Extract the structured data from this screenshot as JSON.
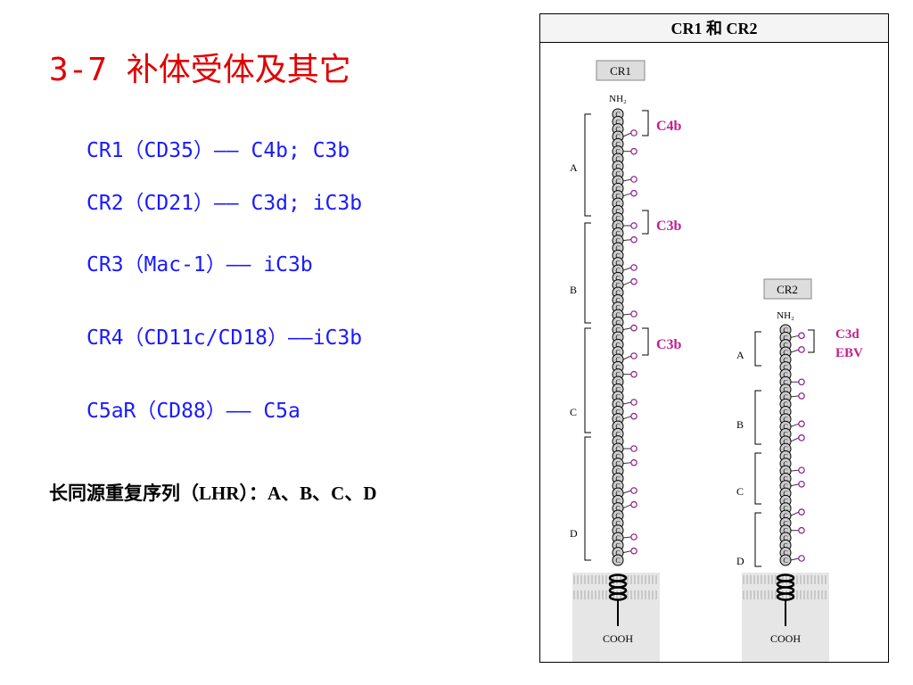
{
  "title": "3-7  补体受体及其它",
  "receptors": [
    "CR1（CD35）—— C4b; C3b",
    "CR2（CD21）—— C3d; iC3b",
    "CR3（Mac-1）—— iC3b",
    "CR4（CD11c/CD18）——iC3b",
    "C5aR（CD88）—— C5a"
  ],
  "lhr_note": "长同源重复序列（LHR）：A、B、C、D",
  "figure": {
    "title": "CR1 和 CR2",
    "bead_label": "C",
    "nh2": "NH₂",
    "cooh": "COOH",
    "cr1": {
      "label": "CR1",
      "domains": [
        "A",
        "B",
        "C",
        "D"
      ],
      "ligands": [
        "C4b",
        "C3b",
        "C3b"
      ]
    },
    "cr2": {
      "label": "CR2",
      "domains": [
        "A",
        "B",
        "C",
        "D"
      ],
      "ligands": [
        "C3d",
        "EBV"
      ]
    }
  }
}
